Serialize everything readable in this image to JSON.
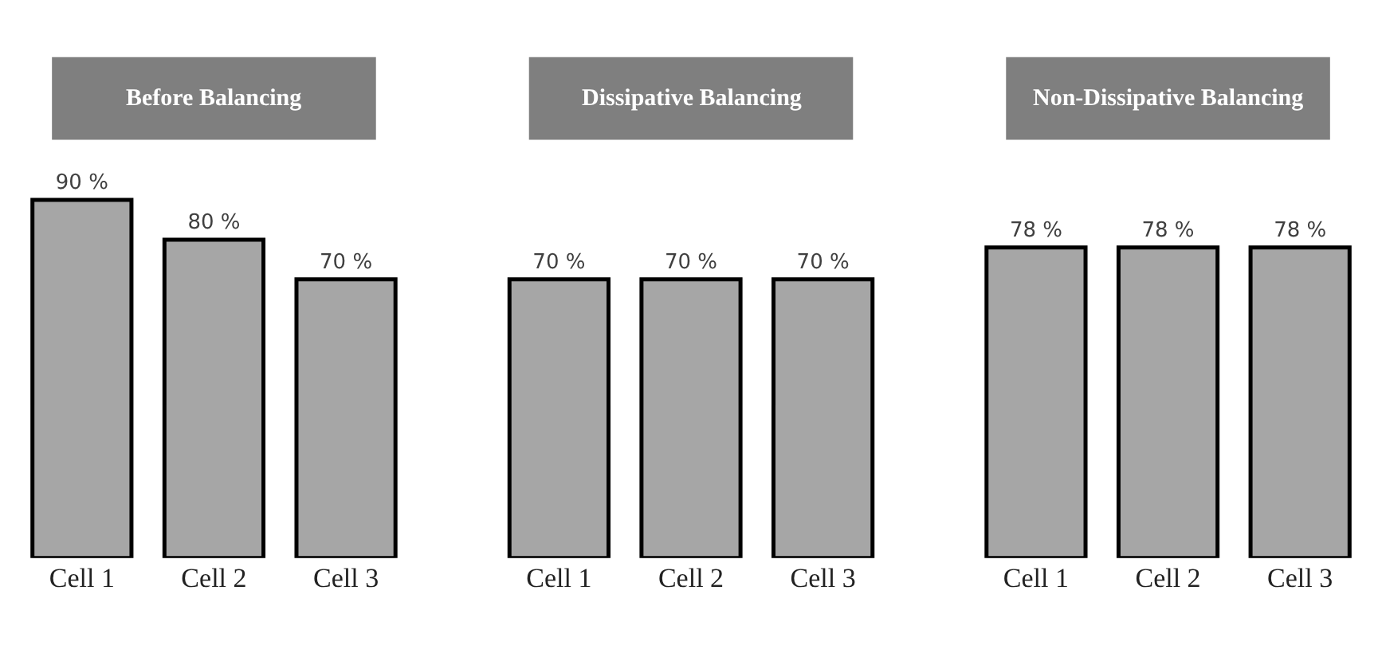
{
  "chart_data": [
    {
      "type": "bar",
      "title": "Before Balancing",
      "categories": [
        "Cell 1",
        "Cell 2",
        "Cell 3"
      ],
      "values": [
        90,
        80,
        70
      ],
      "value_labels": [
        "90 %",
        "80 %",
        "70 %"
      ],
      "color": "#a6a6a6",
      "tick_labels": "x"
    },
    {
      "type": "bar",
      "title": "Dissipative Balancing",
      "categories": [
        "Cell 1",
        "Cell 2",
        "Cell 3"
      ],
      "values": [
        70,
        70,
        70
      ],
      "value_labels": [
        "70 %",
        "70 %",
        "70 %"
      ],
      "color": "#a6a6a6",
      "tick_labels": "x"
    },
    {
      "type": "bar",
      "title": "Non-Dissipative Balancing",
      "categories": [
        "Cell 1",
        "Cell 2",
        "Cell 3"
      ],
      "values": [
        78,
        78,
        78
      ],
      "value_labels": [
        "78 %",
        "78 %",
        "78 %"
      ],
      "color": "#a6a6a6",
      "tick_labels": "x"
    }
  ]
}
